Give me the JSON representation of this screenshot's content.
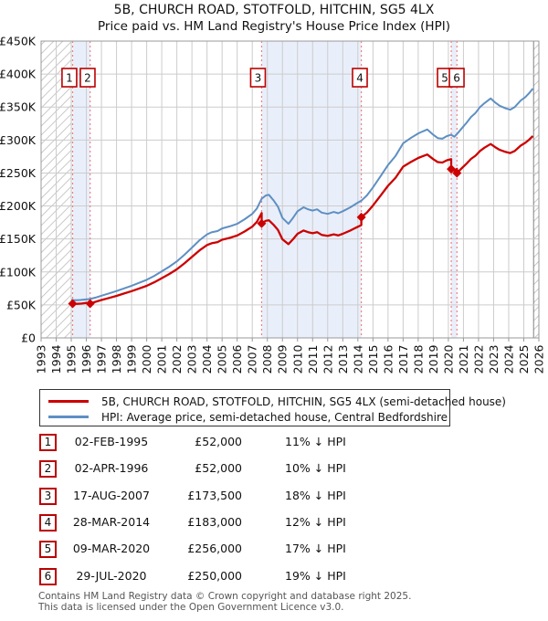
{
  "header": {
    "title": "5B, CHURCH ROAD, STOTFOLD, HITCHIN, SG5 4LX",
    "subtitle": "Price paid vs. HM Land Registry's House Price Index (HPI)"
  },
  "chart_data": {
    "type": "line",
    "xlim": [
      1993,
      2026
    ],
    "ylim": [
      0,
      450000
    ],
    "x_ticks": [
      1993,
      1994,
      1995,
      1996,
      1997,
      1998,
      1999,
      2000,
      2001,
      2002,
      2003,
      2004,
      2005,
      2006,
      2007,
      2008,
      2009,
      2010,
      2011,
      2012,
      2013,
      2014,
      2015,
      2016,
      2017,
      2018,
      2019,
      2020,
      2021,
      2022,
      2023,
      2024,
      2025,
      2026
    ],
    "y_ticks": [
      {
        "value": 0,
        "label": "£0"
      },
      {
        "value": 50000,
        "label": "£50K"
      },
      {
        "value": 100000,
        "label": "£100K"
      },
      {
        "value": 150000,
        "label": "£150K"
      },
      {
        "value": 200000,
        "label": "£200K"
      },
      {
        "value": 250000,
        "label": "£250K"
      },
      {
        "value": 300000,
        "label": "£300K"
      },
      {
        "value": 350000,
        "label": "£350K"
      },
      {
        "value": 400000,
        "label": "£400K"
      },
      {
        "value": 450000,
        "label": "£450K"
      }
    ],
    "grid": true,
    "legend_position": "bottom",
    "colors": {
      "price_line": "#cc0000",
      "hpi_line": "#5e8fc4",
      "transaction_line": "#f08080",
      "ownership_band": "#e9effa",
      "grid": "#cccccc",
      "border": "#999999",
      "hatch_line": "#c9c9c9",
      "hatch_edge": "#808080",
      "marker_box_border": "#bb0000"
    },
    "series": [
      {
        "name": "price-paid",
        "label": "5B, CHURCH ROAD, STOTFOLD, HITCHIN, SG5 4LX (semi-detached house)",
        "color": "#cc0000",
        "points": [
          [
            1995.09,
            52000
          ],
          [
            1995.4,
            51600
          ],
          [
            1995.7,
            52000
          ],
          [
            1996.0,
            53000
          ],
          [
            1996.25,
            52000
          ],
          [
            1996.6,
            54700
          ],
          [
            1997.0,
            57400
          ],
          [
            1997.5,
            60500
          ],
          [
            1998.0,
            63700
          ],
          [
            1998.5,
            67300
          ],
          [
            1999.0,
            70900
          ],
          [
            1999.5,
            74900
          ],
          [
            2000.0,
            78900
          ],
          [
            2000.5,
            84300
          ],
          [
            2001.0,
            90600
          ],
          [
            2001.5,
            96900
          ],
          [
            2002.0,
            104000
          ],
          [
            2002.5,
            113000
          ],
          [
            2003.0,
            122900
          ],
          [
            2003.5,
            132700
          ],
          [
            2004.0,
            140800
          ],
          [
            2004.3,
            143500
          ],
          [
            2004.7,
            145300
          ],
          [
            2005.0,
            148900
          ],
          [
            2005.5,
            151600
          ],
          [
            2006.0,
            155200
          ],
          [
            2006.5,
            161400
          ],
          [
            2007.0,
            168600
          ],
          [
            2007.3,
            175800
          ],
          [
            2007.62,
            189300
          ],
          [
            2007.62,
            173500
          ],
          [
            2007.9,
            177600
          ],
          [
            2008.1,
            178400
          ],
          [
            2008.4,
            171800
          ],
          [
            2008.7,
            163600
          ],
          [
            2009.0,
            149600
          ],
          [
            2009.4,
            142200
          ],
          [
            2009.7,
            149600
          ],
          [
            2010.0,
            157900
          ],
          [
            2010.4,
            162800
          ],
          [
            2010.7,
            160300
          ],
          [
            2011.0,
            158700
          ],
          [
            2011.3,
            160300
          ],
          [
            2011.6,
            156200
          ],
          [
            2012.0,
            154600
          ],
          [
            2012.4,
            157000
          ],
          [
            2012.7,
            155400
          ],
          [
            2013.0,
            157900
          ],
          [
            2013.5,
            162800
          ],
          [
            2014.0,
            168500
          ],
          [
            2014.23,
            171000
          ],
          [
            2014.23,
            183000
          ],
          [
            2014.6,
            190100
          ],
          [
            2015.0,
            200600
          ],
          [
            2015.5,
            215600
          ],
          [
            2016.0,
            230600
          ],
          [
            2016.5,
            242900
          ],
          [
            2017.0,
            259600
          ],
          [
            2017.5,
            266600
          ],
          [
            2018.0,
            272800
          ],
          [
            2018.3,
            275400
          ],
          [
            2018.6,
            278100
          ],
          [
            2019.0,
            271000
          ],
          [
            2019.3,
            266600
          ],
          [
            2019.6,
            265800
          ],
          [
            2019.9,
            269300
          ],
          [
            2020.19,
            271000
          ],
          [
            2020.19,
            256000
          ],
          [
            2020.4,
            253500
          ],
          [
            2020.57,
            256300
          ],
          [
            2020.57,
            250000
          ],
          [
            2020.9,
            257600
          ],
          [
            2021.2,
            264100
          ],
          [
            2021.5,
            271400
          ],
          [
            2021.8,
            276200
          ],
          [
            2022.1,
            283500
          ],
          [
            2022.4,
            288400
          ],
          [
            2022.8,
            294000
          ],
          [
            2023.1,
            289200
          ],
          [
            2023.4,
            285100
          ],
          [
            2023.8,
            281900
          ],
          [
            2024.1,
            280300
          ],
          [
            2024.4,
            283500
          ],
          [
            2024.8,
            291600
          ],
          [
            2025.1,
            295700
          ],
          [
            2025.35,
            300500
          ],
          [
            2025.6,
            306200
          ]
        ]
      },
      {
        "name": "hpi",
        "label": "HPI: Average price, semi-detached house, Central Bedfordshire",
        "color": "#5e8fc4",
        "points": [
          [
            1995.0,
            57500
          ],
          [
            1995.3,
            57000
          ],
          [
            1995.6,
            57500
          ],
          [
            1995.9,
            58200
          ],
          [
            1996.25,
            59000
          ],
          [
            1996.6,
            61000
          ],
          [
            1997.0,
            64000
          ],
          [
            1997.5,
            67500
          ],
          [
            1998.0,
            71000
          ],
          [
            1998.5,
            75000
          ],
          [
            1999.0,
            79000
          ],
          [
            1999.5,
            83500
          ],
          [
            2000.0,
            88000
          ],
          [
            2000.5,
            94000
          ],
          [
            2001.0,
            101000
          ],
          [
            2001.5,
            108000
          ],
          [
            2002.0,
            116000
          ],
          [
            2002.5,
            126000
          ],
          [
            2003.0,
            137000
          ],
          [
            2003.5,
            148000
          ],
          [
            2004.0,
            157000
          ],
          [
            2004.3,
            160000
          ],
          [
            2004.7,
            162000
          ],
          [
            2005.0,
            166000
          ],
          [
            2005.5,
            169000
          ],
          [
            2006.0,
            173000
          ],
          [
            2006.5,
            180000
          ],
          [
            2007.0,
            188000
          ],
          [
            2007.3,
            196000
          ],
          [
            2007.62,
            211000
          ],
          [
            2007.9,
            216000
          ],
          [
            2008.1,
            217000
          ],
          [
            2008.4,
            209000
          ],
          [
            2008.7,
            199000
          ],
          [
            2009.0,
            182000
          ],
          [
            2009.4,
            173000
          ],
          [
            2009.7,
            182000
          ],
          [
            2010.0,
            192000
          ],
          [
            2010.4,
            198000
          ],
          [
            2010.7,
            195000
          ],
          [
            2011.0,
            193000
          ],
          [
            2011.3,
            195000
          ],
          [
            2011.6,
            190000
          ],
          [
            2012.0,
            188000
          ],
          [
            2012.4,
            191000
          ],
          [
            2012.7,
            189000
          ],
          [
            2013.0,
            192000
          ],
          [
            2013.5,
            198000
          ],
          [
            2014.0,
            205000
          ],
          [
            2014.23,
            208000
          ],
          [
            2014.6,
            216000
          ],
          [
            2015.0,
            228000
          ],
          [
            2015.5,
            245000
          ],
          [
            2016.0,
            262000
          ],
          [
            2016.5,
            276000
          ],
          [
            2017.0,
            295000
          ],
          [
            2017.5,
            303000
          ],
          [
            2018.0,
            310000
          ],
          [
            2018.3,
            313000
          ],
          [
            2018.6,
            316000
          ],
          [
            2019.0,
            308000
          ],
          [
            2019.3,
            303000
          ],
          [
            2019.6,
            302000
          ],
          [
            2019.9,
            306000
          ],
          [
            2020.19,
            308000
          ],
          [
            2020.4,
            305000
          ],
          [
            2020.57,
            309000
          ],
          [
            2020.9,
            318000
          ],
          [
            2021.2,
            326000
          ],
          [
            2021.5,
            335000
          ],
          [
            2021.8,
            341000
          ],
          [
            2022.1,
            350000
          ],
          [
            2022.4,
            356000
          ],
          [
            2022.8,
            363000
          ],
          [
            2023.1,
            357000
          ],
          [
            2023.4,
            352000
          ],
          [
            2023.8,
            348000
          ],
          [
            2024.1,
            346000
          ],
          [
            2024.4,
            350000
          ],
          [
            2024.8,
            360000
          ],
          [
            2025.1,
            365000
          ],
          [
            2025.35,
            371000
          ],
          [
            2025.6,
            378000
          ]
        ]
      }
    ],
    "sale_markers": [
      [
        1995.09,
        52000
      ],
      [
        1996.25,
        52000
      ],
      [
        2007.62,
        173500
      ],
      [
        2014.23,
        183000
      ],
      [
        2020.19,
        256000
      ],
      [
        2020.57,
        250000
      ]
    ],
    "transactions": [
      {
        "label": "1",
        "year": 1995.09,
        "box_offset": -3.6
      },
      {
        "label": "2",
        "year": 1996.25,
        "box_offset": -2.7
      },
      {
        "label": "3",
        "year": 2007.62,
        "box_offset": -4.0
      },
      {
        "label": "4",
        "year": 2014.23,
        "box_offset": -1.6
      },
      {
        "label": "5",
        "year": 2020.19,
        "box_offset": -7.0
      },
      {
        "label": "6",
        "year": 2020.57,
        "box_offset": -0.3
      }
    ],
    "ownership_bands": [
      [
        1995.09,
        1996.25
      ],
      [
        2007.62,
        2014.23
      ],
      [
        2020.19,
        2020.57
      ]
    ],
    "no_data_hatch": [
      [
        1993,
        1995.0
      ],
      [
        2025.65,
        2026
      ]
    ]
  },
  "legend": {
    "items": [
      {
        "label": "5B, CHURCH ROAD, STOTFOLD, HITCHIN, SG5 4LX (semi-detached house)",
        "color": "#cc0000"
      },
      {
        "label": "HPI: Average price, semi-detached house, Central Bedfordshire",
        "color": "#5e8fc4"
      }
    ]
  },
  "table": {
    "rows": [
      {
        "num": "1",
        "date": "02-FEB-1995",
        "price": "£52,000",
        "vs_hpi": "11% ↓ HPI"
      },
      {
        "num": "2",
        "date": "02-APR-1996",
        "price": "£52,000",
        "vs_hpi": "10% ↓ HPI"
      },
      {
        "num": "3",
        "date": "17-AUG-2007",
        "price": "£173,500",
        "vs_hpi": "18% ↓ HPI"
      },
      {
        "num": "4",
        "date": "28-MAR-2014",
        "price": "£183,000",
        "vs_hpi": "12% ↓ HPI"
      },
      {
        "num": "5",
        "date": "09-MAR-2020",
        "price": "£256,000",
        "vs_hpi": "17% ↓ HPI"
      },
      {
        "num": "6",
        "date": "29-JUL-2020",
        "price": "£250,000",
        "vs_hpi": "19% ↓ HPI"
      }
    ]
  },
  "footer": {
    "line1": "Contains HM Land Registry data © Crown copyright and database right 2025.",
    "line2": "This data is licensed under the Open Government Licence v3.0."
  }
}
